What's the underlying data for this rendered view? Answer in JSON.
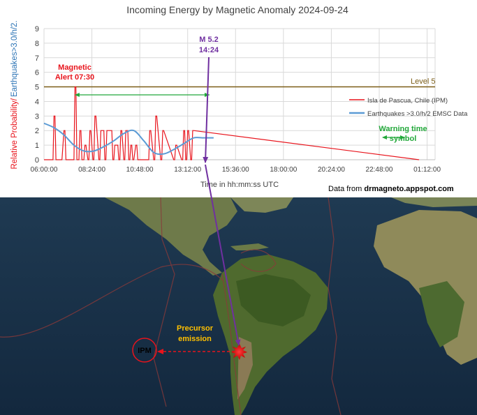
{
  "chart_data": {
    "type": "line",
    "title": "Incoming Energy by Magnetic Anomaly 2024-09-24",
    "xlabel": "Time in hh:mm:ss UTC",
    "ylabel_part1": "Relative Probability/",
    "ylabel_part2": "Earthquakes>3.0/h/2.",
    "ylim": [
      0,
      9
    ],
    "yticks": [
      "0",
      "1",
      "2",
      "3",
      "4",
      "5",
      "6",
      "7",
      "8",
      "9"
    ],
    "xlim_hours": [
      6,
      25.6
    ],
    "xticks": [
      {
        "h": 6.0,
        "label": "06:00:00"
      },
      {
        "h": 8.4,
        "label": "08:24:00"
      },
      {
        "h": 10.8,
        "label": "10:48:00"
      },
      {
        "h": 13.2,
        "label": "13:12:00"
      },
      {
        "h": 15.6,
        "label": "15:36:00"
      },
      {
        "h": 18.0,
        "label": "18:00:00"
      },
      {
        "h": 20.4,
        "label": "20:24:00"
      },
      {
        "h": 22.8,
        "label": "22:48:00"
      },
      {
        "h": 25.2,
        "label": "01:12:00"
      }
    ],
    "grid": true,
    "legend_position": "right",
    "series": [
      {
        "name": "Isla de Pascua, Chile (IPM)",
        "color": "#e8141c",
        "hours": [
          6.0,
          6.45,
          6.5,
          6.55,
          6.6,
          6.9,
          7.0,
          7.05,
          7.1,
          7.5,
          7.55,
          7.6,
          7.65,
          7.75,
          7.8,
          7.85,
          7.9,
          8.0,
          8.05,
          8.1,
          8.2,
          8.25,
          8.3,
          8.35,
          8.45,
          8.5,
          8.55,
          8.6,
          8.75,
          8.8,
          8.85,
          9.0,
          9.05,
          9.1,
          9.15,
          9.4,
          9.45,
          9.5,
          9.55,
          9.7,
          9.75,
          9.8,
          9.85,
          9.9,
          10.0,
          10.05,
          10.1,
          10.2,
          10.25,
          10.3,
          10.35,
          10.4,
          10.45,
          10.5,
          10.6,
          10.65,
          10.7,
          10.75,
          11.2,
          11.25,
          11.3,
          11.35,
          11.5,
          11.55,
          11.6,
          11.65,
          11.85,
          11.9,
          11.95,
          12.0,
          12.5,
          12.55,
          12.6,
          12.65,
          12.9,
          12.95,
          13.0,
          13.05,
          13.1,
          13.15,
          13.2,
          13.25,
          13.35,
          13.4,
          13.45,
          13.5,
          24.8
        ],
        "values": [
          0,
          0,
          3,
          3,
          0,
          0,
          2,
          2,
          0,
          0,
          5,
          5,
          0,
          0,
          2,
          2,
          0,
          0,
          1,
          1,
          0,
          0,
          2,
          2,
          0,
          0,
          3,
          3,
          0,
          0,
          2,
          2,
          0,
          0,
          2,
          2,
          0,
          0,
          1,
          1,
          0,
          0,
          2,
          2,
          0,
          0,
          2,
          2,
          0,
          0,
          1,
          1,
          0,
          0,
          1,
          1,
          0,
          0,
          0,
          0,
          2,
          2,
          0,
          0,
          3,
          3,
          0,
          0,
          2,
          2,
          0,
          0,
          1,
          1,
          0,
          0,
          2,
          2,
          0,
          0,
          2,
          2,
          0,
          0,
          2,
          2,
          0
        ]
      },
      {
        "name": "Earthquakes >3.0/h/2 EMSC Data",
        "color": "#5b9bd5",
        "hours": [
          6.0,
          6.5,
          7.0,
          7.5,
          8.0,
          8.5,
          9.0,
          9.5,
          10.0,
          10.5,
          11.0,
          11.5,
          12.0,
          12.5,
          13.0,
          13.5,
          14.0,
          14.5
        ],
        "values": [
          2.5,
          2.2,
          1.7,
          1.0,
          0.6,
          0.6,
          0.9,
          1.3,
          1.8,
          2.0,
          1.3,
          0.5,
          0.4,
          0.7,
          1.1,
          1.5,
          1.5,
          1.5
        ]
      }
    ],
    "reference_line": {
      "label": "Level 5",
      "value": 5,
      "color": "#7b5d17"
    },
    "annotations": {
      "alert_line1": "Magnetic",
      "alert_line2": "Alert 07:30",
      "alert_hour": 7.5,
      "quake_line1": "M 5.2",
      "quake_line2": "14:24",
      "quake_hour": 14.4,
      "warning_line1": "Warning time",
      "warning_line2": "symbol",
      "source_prefix": "Data from ",
      "source_site": "drmagneto.appspot.com"
    },
    "colors": {
      "ipm": "#e8141c",
      "emsc": "#5b9bd5",
      "level": "#7b5d17",
      "warning": "#22a83a",
      "quake": "#7030a0",
      "precursor": "#ffc000"
    }
  },
  "map": {
    "station": "IPM",
    "precursor_line1": "Precursor",
    "precursor_line2": "emission"
  }
}
